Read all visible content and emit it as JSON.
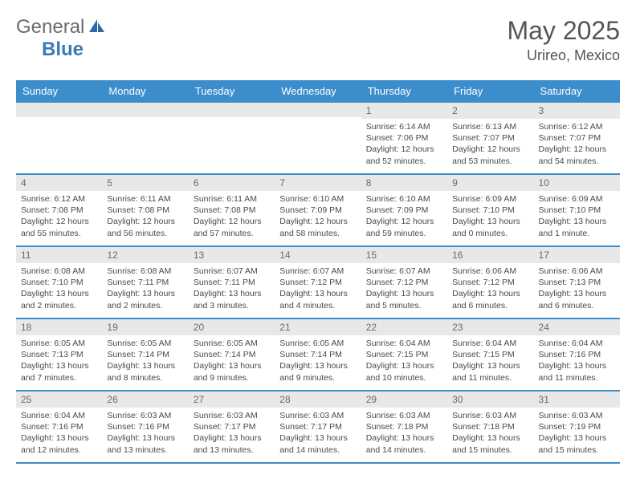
{
  "brand": {
    "part1": "General",
    "part2": "Blue"
  },
  "title": "May 2025",
  "location": "Urireo, Mexico",
  "colors": {
    "header_bg": "#3c8dcc",
    "header_text": "#ffffff",
    "daynum_bg": "#e8e8e8",
    "daynum_text": "#6a6a6a",
    "body_text": "#4a4a4a",
    "rule": "#3c8dcc",
    "brand_gray": "#6b6b6b",
    "brand_blue": "#3a7ab8"
  },
  "layout": {
    "columns": 7,
    "rows": 5,
    "daynum_fontsize": 12,
    "body_fontsize": 10.5,
    "header_fontsize": 13,
    "title_fontsize": 32,
    "location_fontsize": 18
  },
  "weekdays": [
    "Sunday",
    "Monday",
    "Tuesday",
    "Wednesday",
    "Thursday",
    "Friday",
    "Saturday"
  ],
  "weeks": [
    [
      null,
      null,
      null,
      null,
      {
        "n": "1",
        "sr": "6:14 AM",
        "ss": "7:06 PM",
        "dl": "12 hours and 52 minutes."
      },
      {
        "n": "2",
        "sr": "6:13 AM",
        "ss": "7:07 PM",
        "dl": "12 hours and 53 minutes."
      },
      {
        "n": "3",
        "sr": "6:12 AM",
        "ss": "7:07 PM",
        "dl": "12 hours and 54 minutes."
      }
    ],
    [
      {
        "n": "4",
        "sr": "6:12 AM",
        "ss": "7:08 PM",
        "dl": "12 hours and 55 minutes."
      },
      {
        "n": "5",
        "sr": "6:11 AM",
        "ss": "7:08 PM",
        "dl": "12 hours and 56 minutes."
      },
      {
        "n": "6",
        "sr": "6:11 AM",
        "ss": "7:08 PM",
        "dl": "12 hours and 57 minutes."
      },
      {
        "n": "7",
        "sr": "6:10 AM",
        "ss": "7:09 PM",
        "dl": "12 hours and 58 minutes."
      },
      {
        "n": "8",
        "sr": "6:10 AM",
        "ss": "7:09 PM",
        "dl": "12 hours and 59 minutes."
      },
      {
        "n": "9",
        "sr": "6:09 AM",
        "ss": "7:10 PM",
        "dl": "13 hours and 0 minutes."
      },
      {
        "n": "10",
        "sr": "6:09 AM",
        "ss": "7:10 PM",
        "dl": "13 hours and 1 minute."
      }
    ],
    [
      {
        "n": "11",
        "sr": "6:08 AM",
        "ss": "7:10 PM",
        "dl": "13 hours and 2 minutes."
      },
      {
        "n": "12",
        "sr": "6:08 AM",
        "ss": "7:11 PM",
        "dl": "13 hours and 2 minutes."
      },
      {
        "n": "13",
        "sr": "6:07 AM",
        "ss": "7:11 PM",
        "dl": "13 hours and 3 minutes."
      },
      {
        "n": "14",
        "sr": "6:07 AM",
        "ss": "7:12 PM",
        "dl": "13 hours and 4 minutes."
      },
      {
        "n": "15",
        "sr": "6:07 AM",
        "ss": "7:12 PM",
        "dl": "13 hours and 5 minutes."
      },
      {
        "n": "16",
        "sr": "6:06 AM",
        "ss": "7:12 PM",
        "dl": "13 hours and 6 minutes."
      },
      {
        "n": "17",
        "sr": "6:06 AM",
        "ss": "7:13 PM",
        "dl": "13 hours and 6 minutes."
      }
    ],
    [
      {
        "n": "18",
        "sr": "6:05 AM",
        "ss": "7:13 PM",
        "dl": "13 hours and 7 minutes."
      },
      {
        "n": "19",
        "sr": "6:05 AM",
        "ss": "7:14 PM",
        "dl": "13 hours and 8 minutes."
      },
      {
        "n": "20",
        "sr": "6:05 AM",
        "ss": "7:14 PM",
        "dl": "13 hours and 9 minutes."
      },
      {
        "n": "21",
        "sr": "6:05 AM",
        "ss": "7:14 PM",
        "dl": "13 hours and 9 minutes."
      },
      {
        "n": "22",
        "sr": "6:04 AM",
        "ss": "7:15 PM",
        "dl": "13 hours and 10 minutes."
      },
      {
        "n": "23",
        "sr": "6:04 AM",
        "ss": "7:15 PM",
        "dl": "13 hours and 11 minutes."
      },
      {
        "n": "24",
        "sr": "6:04 AM",
        "ss": "7:16 PM",
        "dl": "13 hours and 11 minutes."
      }
    ],
    [
      {
        "n": "25",
        "sr": "6:04 AM",
        "ss": "7:16 PM",
        "dl": "13 hours and 12 minutes."
      },
      {
        "n": "26",
        "sr": "6:03 AM",
        "ss": "7:16 PM",
        "dl": "13 hours and 13 minutes."
      },
      {
        "n": "27",
        "sr": "6:03 AM",
        "ss": "7:17 PM",
        "dl": "13 hours and 13 minutes."
      },
      {
        "n": "28",
        "sr": "6:03 AM",
        "ss": "7:17 PM",
        "dl": "13 hours and 14 minutes."
      },
      {
        "n": "29",
        "sr": "6:03 AM",
        "ss": "7:18 PM",
        "dl": "13 hours and 14 minutes."
      },
      {
        "n": "30",
        "sr": "6:03 AM",
        "ss": "7:18 PM",
        "dl": "13 hours and 15 minutes."
      },
      {
        "n": "31",
        "sr": "6:03 AM",
        "ss": "7:19 PM",
        "dl": "13 hours and 15 minutes."
      }
    ]
  ],
  "labels": {
    "sunrise": "Sunrise:",
    "sunset": "Sunset:",
    "daylight": "Daylight:"
  }
}
